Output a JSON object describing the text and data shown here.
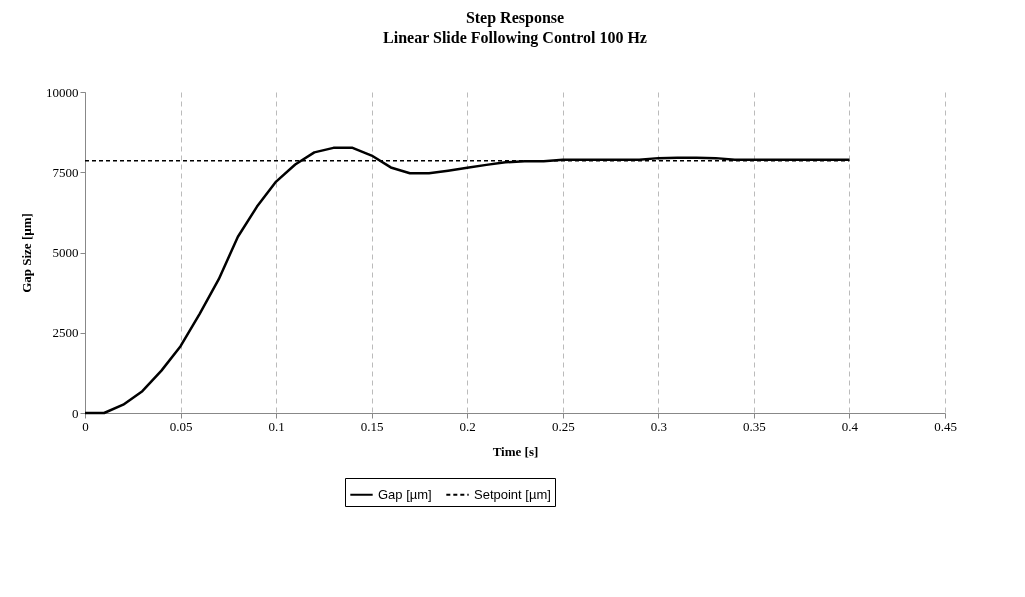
{
  "chart_data": {
    "type": "line",
    "title": "Step Response",
    "subtitle": "Linear Slide Following Control 100 Hz",
    "xlabel": "Time [s]",
    "ylabel": "Gap Size [µm]",
    "xlim": [
      0,
      0.45
    ],
    "xticks": [
      0,
      0.05,
      0.1,
      0.15,
      0.2,
      0.25,
      0.3,
      0.35,
      0.4,
      0.45
    ],
    "ylim": [
      0,
      10000
    ],
    "yticks": [
      0,
      2500,
      5000,
      7500,
      10000
    ],
    "grid": "x",
    "legend": "bottom",
    "marker": "none",
    "series": [
      {
        "name": "Gap [µm]",
        "color": "#000000",
        "line_style": "solid",
        "x": [
          0,
          0.01,
          0.02,
          0.03,
          0.04,
          0.05,
          0.06,
          0.07,
          0.08,
          0.09,
          0.1,
          0.11,
          0.12,
          0.13,
          0.14,
          0.15,
          0.16,
          0.17,
          0.18,
          0.19,
          0.2,
          0.21,
          0.22,
          0.23,
          0.24,
          0.25,
          0.26,
          0.27,
          0.28,
          0.29,
          0.3,
          0.31,
          0.32,
          0.33,
          0.34,
          0.35,
          0.36,
          0.37,
          0.38,
          0.39,
          0.4
        ],
        "values": [
          0,
          0,
          260,
          680,
          1320,
          2080,
          3090,
          4170,
          5490,
          6430,
          7210,
          7740,
          8120,
          8260,
          8260,
          8020,
          7650,
          7470,
          7470,
          7550,
          7640,
          7730,
          7810,
          7840,
          7840,
          7890,
          7890,
          7890,
          7890,
          7890,
          7940,
          7950,
          7950,
          7940,
          7890,
          7890,
          7890,
          7890,
          7890,
          7890,
          7890
        ]
      },
      {
        "name": "Setpoint [µm]",
        "color": "#000000",
        "line_style": "dashed",
        "x": [
          0,
          0.4
        ],
        "values": [
          7860,
          7860
        ]
      }
    ]
  }
}
